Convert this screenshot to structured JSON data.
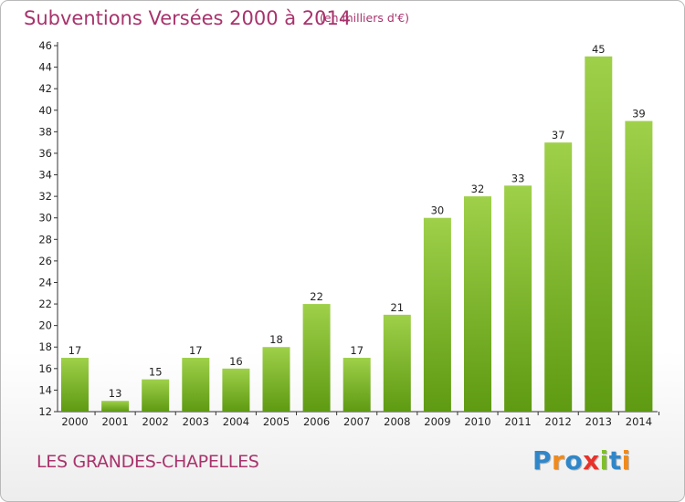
{
  "chart_data": {
    "type": "bar",
    "title": "Subventions Versées 2000 à 2014",
    "subtitle": "(en milliers d'€)",
    "categories": [
      "2000",
      "2001",
      "2002",
      "2003",
      "2004",
      "2005",
      "2006",
      "2007",
      "2008",
      "2009",
      "2010",
      "2011",
      "2012",
      "2013",
      "2014"
    ],
    "values": [
      17,
      13,
      15,
      17,
      16,
      18,
      22,
      17,
      21,
      30,
      32,
      33,
      37,
      45,
      39
    ],
    "xlabel": "",
    "ylabel": "",
    "ylim": [
      12,
      46
    ],
    "yticks": [
      12,
      14,
      16,
      18,
      20,
      22,
      24,
      26,
      28,
      30,
      32,
      34,
      36,
      38,
      40,
      42,
      44,
      46
    ],
    "grid": false,
    "bar_color_top": "#9fd04a",
    "bar_color_bottom": "#5e9a12"
  },
  "footer": {
    "town": "LES GRANDES-CHAPELLES"
  },
  "brand": {
    "letters": [
      {
        "char": "P",
        "color": "#2f87c9"
      },
      {
        "char": "r",
        "color": "#f08a1c"
      },
      {
        "char": "o",
        "color": "#2f87c9"
      },
      {
        "char": "x",
        "color": "#e8312a"
      },
      {
        "char": "i",
        "color": "#7fbf2a"
      },
      {
        "char": "t",
        "color": "#2f87c9"
      },
      {
        "char": "i",
        "color": "#f08a1c"
      }
    ]
  },
  "colors": {
    "title": "#a8336c",
    "axis": "#333333"
  }
}
